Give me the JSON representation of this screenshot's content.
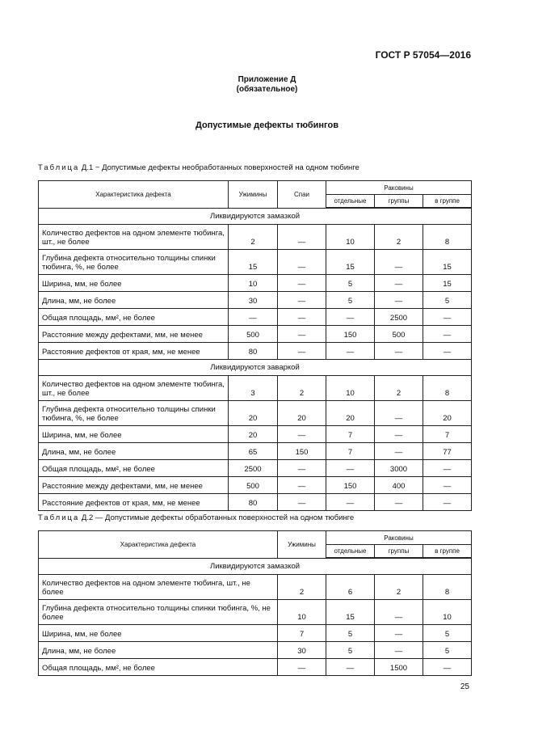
{
  "header": {
    "doc_code": "ГОСТ Р 57054—2016"
  },
  "annex": {
    "title": "Приложение Д",
    "status": "(обязательное)"
  },
  "section_title": "Допустимые дефекты тюбингов",
  "table1": {
    "caption_prefix": "Таблица",
    "caption_text": " Д.1 − Допустимые дефекты необработанных поверхностей на одном тюбинге",
    "headers": {
      "characteristic": "Характеристика дефекта",
      "columns": [
        "Ужимины",
        "Спаи"
      ],
      "group": "Раковины",
      "subcolumns": [
        "отдельные",
        "группы",
        "в группе"
      ]
    },
    "sections": [
      {
        "title": "Ликвидируются замазкой",
        "rows": [
          {
            "name": "Количество дефектов на одном элементе тюбинга, шт., не более",
            "values": [
              "2",
              "—",
              "10",
              "2",
              "8"
            ]
          },
          {
            "name": "Глубина дефекта относительно толщины спинки тюбинга, %, не более",
            "values": [
              "15",
              "—",
              "15",
              "—",
              "15"
            ]
          },
          {
            "name": "Ширина, мм, не более",
            "values": [
              "10",
              "—",
              "5",
              "—",
              "15"
            ]
          },
          {
            "name": "Длина, мм, не более",
            "values": [
              "30",
              "—",
              "5",
              "—",
              "5"
            ]
          },
          {
            "name": "Общая площадь, мм², не более",
            "values": [
              "—",
              "—",
              "—",
              "2500",
              "—"
            ]
          },
          {
            "name": "Расстояние между дефектами, мм, не менее",
            "values": [
              "500",
              "—",
              "150",
              "500",
              "—"
            ]
          },
          {
            "name": "Расстояние дефектов от края, мм, не менее",
            "values": [
              "80",
              "—",
              "—",
              "—",
              "—"
            ]
          }
        ]
      },
      {
        "title": "Ликвидируются заваркой",
        "rows": [
          {
            "name": "Количество дефектов на одном элементе тюбинга, шт., не более",
            "values": [
              "3",
              "2",
              "10",
              "2",
              "8"
            ]
          },
          {
            "name": "Глубина дефекта относительно толщины спинки тюбинга, %, не более",
            "values": [
              "20",
              "20",
              "20",
              "—",
              "20"
            ]
          },
          {
            "name": "Ширина, мм, не более",
            "values": [
              "20",
              "—",
              "7",
              "—",
              "7"
            ]
          },
          {
            "name": "Длина, мм, не более",
            "values": [
              "65",
              "150",
              "7",
              "—",
              "77"
            ]
          },
          {
            "name": "Общая площадь, мм², не более",
            "values": [
              "2500",
              "—",
              "—",
              "3000",
              "—"
            ]
          },
          {
            "name": "Расстояние между дефектами, мм, не менее",
            "values": [
              "500",
              "—",
              "150",
              "400",
              "—"
            ]
          },
          {
            "name": "Расстояние дефектов от края, мм, не менее",
            "values": [
              "80",
              "—",
              "—",
              "—",
              "—"
            ]
          }
        ]
      }
    ]
  },
  "table2": {
    "caption_prefix": "Таблица",
    "caption_text": " Д.2 — Допустимые дефекты обработанных поверхностей на одном тюбинге",
    "headers": {
      "characteristic": "Характеристика дефекта",
      "columns": [
        "Ужимины"
      ],
      "group": "Раковины",
      "subcolumns": [
        "отдельные",
        "группы",
        "в группе"
      ]
    },
    "sections": [
      {
        "title": "Ликвидируются замазкой",
        "rows": [
          {
            "name": "Количество дефектов на одном элементе тюбинга, шт., не более",
            "values": [
              "2",
              "6",
              "2",
              "8"
            ]
          },
          {
            "name": "Глубина дефекта относительно толщины спинки тюбинга, %, не более",
            "values": [
              "10",
              "15",
              "—",
              "10"
            ]
          },
          {
            "name": "Ширина, мм, не более",
            "values": [
              "7",
              "5",
              "—",
              "5"
            ]
          },
          {
            "name": "Длина, мм, не более",
            "values": [
              "30",
              "5",
              "—",
              "5"
            ]
          },
          {
            "name": "Общая площадь, мм², не более",
            "values": [
              "—",
              "—",
              "1500",
              "—"
            ]
          }
        ]
      }
    ]
  },
  "page_number": "25"
}
